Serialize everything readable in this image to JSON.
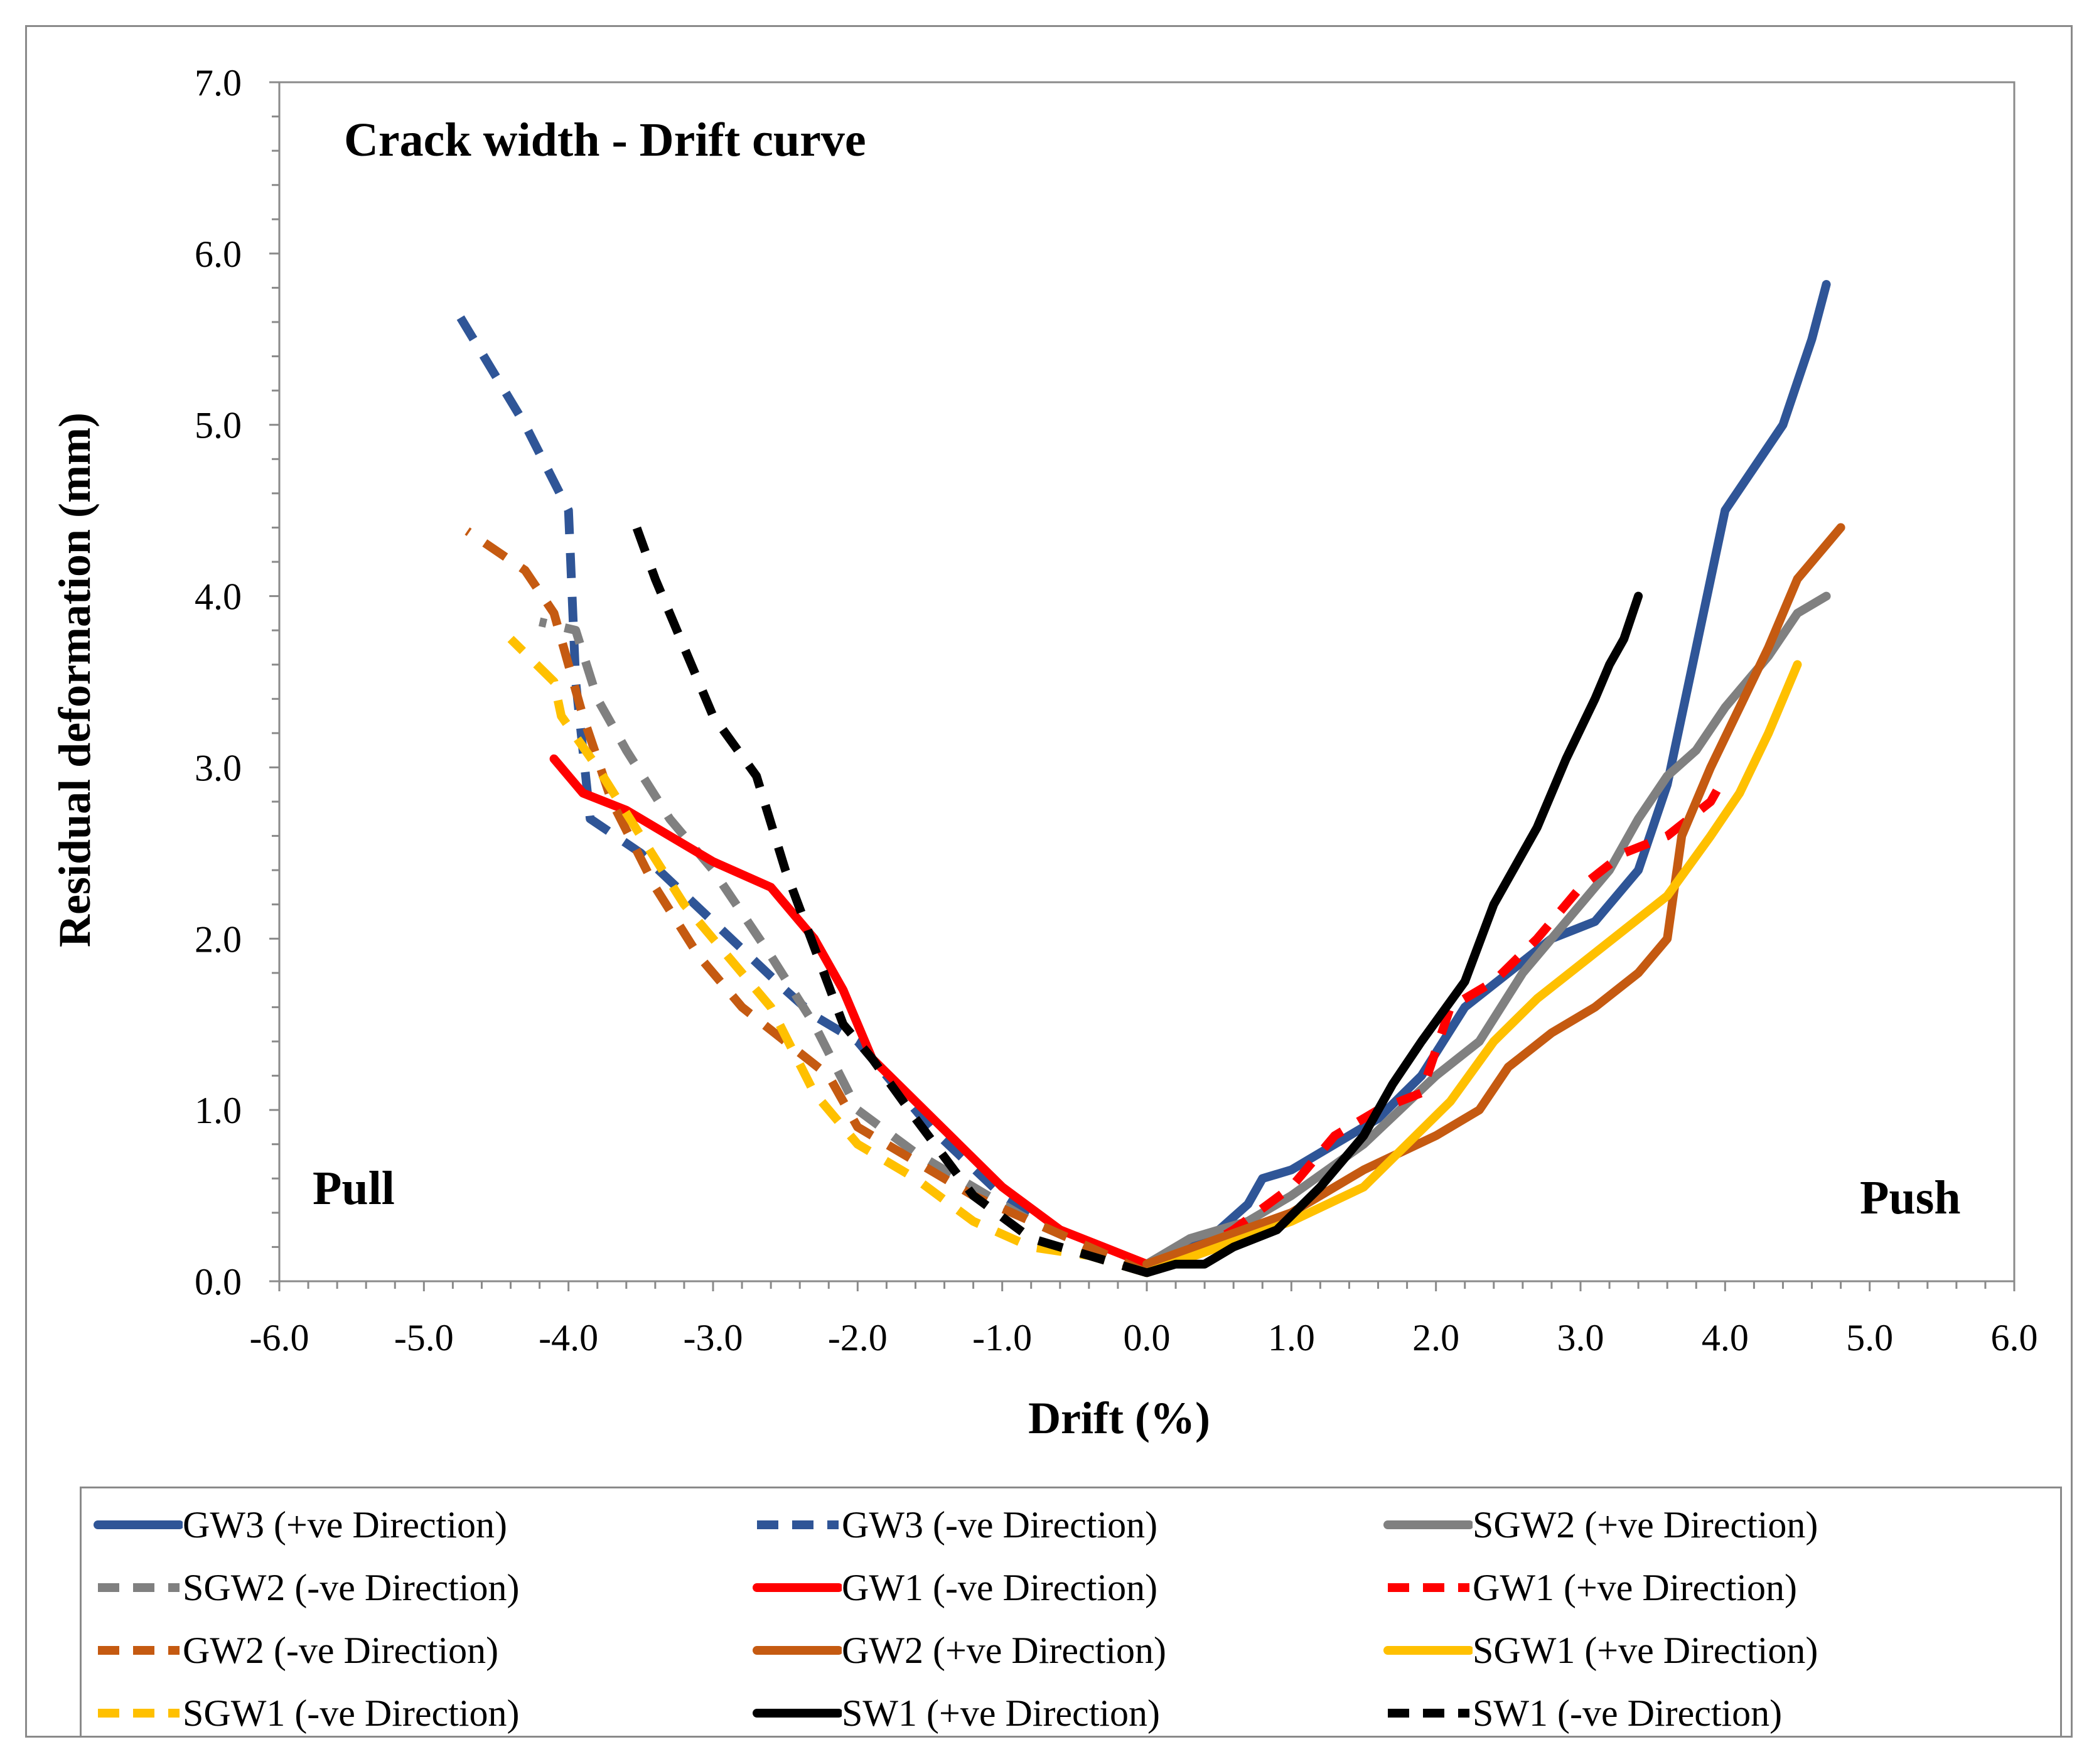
{
  "chart_data": {
    "type": "line",
    "title": "Crack width - Drift curve",
    "xlabel": "Drift (%)",
    "ylabel": "Residual deformation (mm)",
    "xlim": [
      -6.0,
      6.0
    ],
    "ylim": [
      0.0,
      7.0
    ],
    "xticks": [
      "-6.0",
      "-5.0",
      "-4.0",
      "-3.0",
      "-2.0",
      "-1.0",
      "0.0",
      "1.0",
      "2.0",
      "3.0",
      "4.0",
      "5.0",
      "6.0"
    ],
    "yticks": [
      "0.0",
      "1.0",
      "2.0",
      "3.0",
      "4.0",
      "5.0",
      "6.0",
      "7.0"
    ],
    "grid": false,
    "legend_position": "bottom",
    "annotations": {
      "left": "Pull",
      "right": "Push"
    },
    "series": [
      {
        "name": "GW3 (+ve Direction)",
        "color": "#2F5597",
        "dash": "solid",
        "x": [
          0.0,
          0.2,
          0.5,
          0.7,
          0.8,
          1.0,
          1.3,
          1.6,
          1.9,
          2.2,
          2.5,
          2.8,
          3.1,
          3.4,
          3.6,
          3.8,
          4.0,
          4.2,
          4.4,
          4.6,
          4.7
        ],
        "y": [
          0.1,
          0.15,
          0.3,
          0.45,
          0.6,
          0.65,
          0.8,
          0.95,
          1.2,
          1.6,
          1.8,
          2.0,
          2.1,
          2.4,
          2.9,
          3.7,
          4.5,
          4.75,
          5.0,
          5.5,
          5.82
        ]
      },
      {
        "name": "GW3 (-ve Direction)",
        "color": "#2F5597",
        "dash": "dashed",
        "x": [
          0.0,
          -0.5,
          -1.0,
          -1.5,
          -2.0,
          -2.3,
          -2.5,
          -3.0,
          -3.5,
          -3.85,
          -3.95,
          -4.0,
          -4.3,
          -4.8
        ],
        "y": [
          0.05,
          0.25,
          0.5,
          0.9,
          1.4,
          1.55,
          1.7,
          2.1,
          2.5,
          2.7,
          3.5,
          4.5,
          5.0,
          5.7
        ]
      },
      {
        "name": "SGW2 (+ve Direction)",
        "color": "#808080",
        "dash": "solid",
        "x": [
          0.0,
          0.3,
          0.7,
          1.0,
          1.5,
          2.0,
          2.3,
          2.6,
          2.9,
          3.2,
          3.4,
          3.6,
          3.8,
          4.0,
          4.3,
          4.5,
          4.7
        ],
        "y": [
          0.1,
          0.25,
          0.35,
          0.5,
          0.8,
          1.2,
          1.4,
          1.8,
          2.1,
          2.4,
          2.7,
          2.95,
          3.1,
          3.35,
          3.65,
          3.9,
          4.0
        ]
      },
      {
        "name": "SGW2 (-ve Direction)",
        "color": "#808080",
        "dash": "dashed",
        "x": [
          0.0,
          -0.4,
          -0.8,
          -1.2,
          -1.6,
          -2.0,
          -2.3,
          -2.6,
          -3.0,
          -3.3,
          -3.6,
          -3.8,
          -3.95,
          -4.2
        ],
        "y": [
          0.05,
          0.2,
          0.35,
          0.55,
          0.75,
          1.0,
          1.5,
          1.9,
          2.4,
          2.7,
          3.1,
          3.4,
          3.8,
          3.85
        ]
      },
      {
        "name": "GW1 (-ve Direction)",
        "color": "#FF0000",
        "dash": "solid",
        "x": [
          0.0,
          -0.3,
          -0.6,
          -1.0,
          -1.3,
          -1.6,
          -1.9,
          -2.1,
          -2.3,
          -2.6,
          -3.0,
          -3.3,
          -3.6,
          -3.9,
          -4.1
        ],
        "y": [
          0.1,
          0.2,
          0.3,
          0.55,
          0.8,
          1.05,
          1.3,
          1.7,
          2.0,
          2.3,
          2.45,
          2.6,
          2.75,
          2.85,
          3.05
        ]
      },
      {
        "name": "GW1 (+ve Direction)",
        "color": "#FF0000",
        "dash": "dashed",
        "x": [
          0.0,
          0.3,
          0.6,
          1.0,
          1.3,
          1.6,
          1.9,
          2.1,
          2.4,
          2.7,
          3.0,
          3.3,
          3.6,
          3.9,
          4.0
        ],
        "y": [
          0.05,
          0.15,
          0.3,
          0.55,
          0.85,
          1.0,
          1.1,
          1.6,
          1.75,
          2.0,
          2.3,
          2.5,
          2.6,
          2.8,
          2.95
        ]
      },
      {
        "name": "GW2 (-ve Direction)",
        "color": "#C55A11",
        "dash": "dashed",
        "x": [
          0.0,
          -0.4,
          -0.8,
          -1.2,
          -1.6,
          -2.0,
          -2.2,
          -2.5,
          -2.8,
          -3.1,
          -3.4,
          -3.7,
          -3.9,
          -4.1,
          -4.3,
          -4.7
        ],
        "y": [
          0.05,
          0.2,
          0.35,
          0.5,
          0.7,
          0.9,
          1.2,
          1.4,
          1.6,
          1.9,
          2.3,
          2.8,
          3.3,
          3.9,
          4.15,
          4.38
        ]
      },
      {
        "name": "GW2 (+ve Direction)",
        "color": "#C55A11",
        "dash": "solid",
        "x": [
          0.0,
          0.5,
          1.0,
          1.5,
          2.0,
          2.3,
          2.5,
          2.8,
          3.1,
          3.4,
          3.6,
          3.7,
          3.9,
          4.1,
          4.3,
          4.5,
          4.8
        ],
        "y": [
          0.1,
          0.25,
          0.4,
          0.65,
          0.85,
          1.0,
          1.25,
          1.45,
          1.6,
          1.8,
          2.0,
          2.6,
          3.0,
          3.35,
          3.7,
          4.1,
          4.4
        ]
      },
      {
        "name": "SGW1 (+ve Direction)",
        "color": "#FFC000",
        "dash": "solid",
        "x": [
          0.0,
          0.5,
          1.0,
          1.5,
          1.8,
          2.1,
          2.4,
          2.7,
          3.0,
          3.3,
          3.6,
          3.9,
          4.1,
          4.3,
          4.5
        ],
        "y": [
          0.05,
          0.2,
          0.35,
          0.55,
          0.8,
          1.05,
          1.4,
          1.65,
          1.85,
          2.05,
          2.25,
          2.6,
          2.85,
          3.2,
          3.6
        ]
      },
      {
        "name": "SGW1 (-ve Direction)",
        "color": "#FFC000",
        "dash": "dashed",
        "x": [
          0.0,
          -0.4,
          -0.8,
          -1.2,
          -1.6,
          -2.0,
          -2.3,
          -2.6,
          -2.9,
          -3.2,
          -3.5,
          -3.8,
          -4.05,
          -4.1,
          -4.4
        ],
        "y": [
          0.05,
          0.15,
          0.2,
          0.35,
          0.6,
          0.8,
          1.1,
          1.6,
          1.9,
          2.2,
          2.6,
          3.0,
          3.3,
          3.5,
          3.75
        ]
      },
      {
        "name": "SW1 (+ve Direction)",
        "color": "#000000",
        "dash": "solid",
        "x": [
          0.0,
          0.2,
          0.4,
          0.6,
          0.9,
          1.2,
          1.5,
          1.7,
          1.9,
          2.2,
          2.4,
          2.7,
          2.9,
          3.1,
          3.2,
          3.3,
          3.4
        ],
        "y": [
          0.05,
          0.1,
          0.1,
          0.2,
          0.3,
          0.55,
          0.85,
          1.15,
          1.4,
          1.75,
          2.2,
          2.65,
          3.05,
          3.4,
          3.6,
          3.75,
          4.0
        ]
      },
      {
        "name": "SW1 (-ve Direction)",
        "color": "#000000",
        "dash": "dashed",
        "x": [
          0.0,
          -0.4,
          -0.8,
          -1.2,
          -1.6,
          -1.9,
          -2.1,
          -2.3,
          -2.5,
          -2.7,
          -3.0,
          -3.2,
          -3.4,
          -3.55
        ],
        "y": [
          0.05,
          0.15,
          0.25,
          0.5,
          0.95,
          1.3,
          1.5,
          1.95,
          2.4,
          2.95,
          3.3,
          3.7,
          4.1,
          4.45
        ]
      }
    ]
  }
}
